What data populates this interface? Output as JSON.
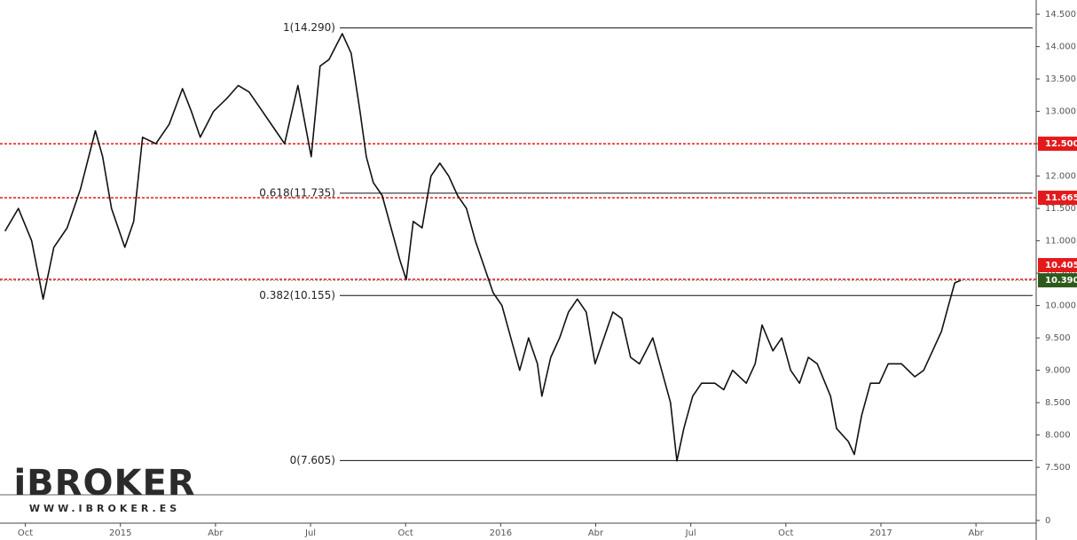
{
  "logo": {
    "name": "iBROKER",
    "url": "WWW.IBROKER.ES"
  },
  "chart_data": {
    "type": "line",
    "series": [
      {
        "color": "#111111",
        "x": [
          -0.64,
          -0.22,
          0.2,
          0.56,
          0.9,
          1.32,
          1.74,
          2.21,
          2.44,
          2.72,
          3.14,
          3.42,
          3.7,
          4.12,
          4.54,
          4.96,
          5.24,
          5.52,
          5.94,
          6.36,
          6.72,
          7.06,
          7.48,
          7.9,
          8.18,
          8.6,
          9.02,
          9.3,
          9.58,
          10.0,
          10.28,
          10.56,
          10.76,
          10.98,
          11.26,
          11.54,
          11.82,
          12.02,
          12.24,
          12.52,
          12.8,
          13.08,
          13.36,
          13.64,
          13.92,
          14.2,
          14.48,
          14.76,
          15.04,
          15.32,
          15.6,
          15.88,
          16.16,
          16.3,
          16.58,
          16.86,
          17.14,
          17.42,
          17.7,
          17.98,
          18.26,
          18.54,
          18.82,
          19.1,
          19.38,
          19.8,
          20.08,
          20.36,
          20.56,
          20.78,
          21.06,
          21.34,
          21.76,
          22.04,
          22.32,
          22.75,
          23.03,
          23.25,
          23.59,
          23.87,
          24.15,
          24.43,
          24.71,
          24.99,
          25.41,
          25.6,
          25.97,
          26.16,
          26.39,
          26.67,
          26.95,
          27.23,
          27.65,
          28.07,
          28.35,
          28.63,
          28.91,
          29.13,
          29.33,
          29.52
        ],
        "values": [
          11.15,
          11.5,
          11.0,
          10.1,
          10.9,
          11.2,
          11.8,
          12.7,
          12.3,
          11.5,
          10.9,
          11.3,
          12.6,
          12.5,
          12.8,
          13.35,
          13.0,
          12.6,
          13.0,
          13.2,
          13.4,
          13.3,
          13.0,
          12.7,
          12.5,
          13.4,
          12.3,
          13.7,
          13.8,
          14.2,
          13.9,
          13.0,
          12.3,
          11.9,
          11.7,
          11.2,
          10.7,
          10.4,
          11.3,
          11.2,
          12.0,
          12.2,
          12.0,
          11.7,
          11.5,
          11.0,
          10.6,
          10.2,
          10.0,
          9.5,
          9.0,
          9.5,
          9.1,
          8.6,
          9.2,
          9.5,
          9.9,
          10.1,
          9.9,
          9.1,
          9.5,
          9.9,
          9.8,
          9.2,
          9.1,
          9.5,
          9.0,
          8.5,
          7.6,
          8.1,
          8.6,
          8.8,
          8.8,
          8.7,
          9.0,
          8.8,
          9.1,
          9.7,
          9.3,
          9.5,
          9.0,
          8.8,
          9.2,
          9.1,
          8.6,
          8.1,
          7.9,
          7.7,
          8.3,
          8.8,
          8.8,
          9.1,
          9.1,
          8.9,
          9.0,
          9.3,
          9.6,
          10.0,
          10.35,
          10.39
        ]
      }
    ],
    "xlim": [
      -0.8,
      31.9
    ],
    "xticks": [
      {
        "value": 0,
        "label": "Oct"
      },
      {
        "value": 3,
        "label": "2015"
      },
      {
        "value": 6,
        "label": "Abr"
      },
      {
        "value": 9,
        "label": "Jul"
      },
      {
        "value": 12,
        "label": "Oct"
      },
      {
        "value": 15,
        "label": "2016"
      },
      {
        "value": 18,
        "label": "Abr"
      },
      {
        "value": 21,
        "label": "Jul"
      },
      {
        "value": 24,
        "label": "Oct"
      },
      {
        "value": 27,
        "label": "2017"
      },
      {
        "value": 30,
        "label": "Abr"
      }
    ],
    "ylim": [
      7.2,
      14.72
    ],
    "yticks": [
      {
        "value": 7.5,
        "label": "7.500"
      },
      {
        "value": 8,
        "label": "8.000"
      },
      {
        "value": 8.5,
        "label": "8.500"
      },
      {
        "value": 9,
        "label": "9.000"
      },
      {
        "value": 9.5,
        "label": "9.500"
      },
      {
        "value": 10,
        "label": "10.000"
      },
      {
        "value": 10.5,
        "label": "10.500"
      },
      {
        "value": 11,
        "label": "11.000"
      },
      {
        "value": 11.5,
        "label": "11.500"
      },
      {
        "value": 12,
        "label": "12.000"
      },
      {
        "value": 12.5,
        "label": "12.500"
      },
      {
        "value": 13,
        "label": "13.000"
      },
      {
        "value": 13.5,
        "label": "13.500"
      },
      {
        "value": 14,
        "label": "14.000"
      },
      {
        "value": 14.5,
        "label": "14.500"
      }
    ],
    "fib_levels": [
      {
        "value": 14.29,
        "label": "1(14.290)"
      },
      {
        "value": 11.735,
        "label": "0.618(11.735)"
      },
      {
        "value": 10.155,
        "label": "0.382(10.155)"
      },
      {
        "value": 7.605,
        "label": "0(7.605)"
      }
    ],
    "levels": [
      {
        "value": 12.5,
        "label": "12.500",
        "color": "#e31a1c"
      },
      {
        "value": 11.665,
        "label": "11.665",
        "color": "#e31a1c"
      },
      {
        "value": 10.405,
        "label": "10.405",
        "color": "#e31a1c"
      }
    ],
    "last_price": {
      "value": 10.39,
      "label": "10.390",
      "color": "#2d5a1b"
    },
    "volume_yticks": [
      0
    ]
  }
}
